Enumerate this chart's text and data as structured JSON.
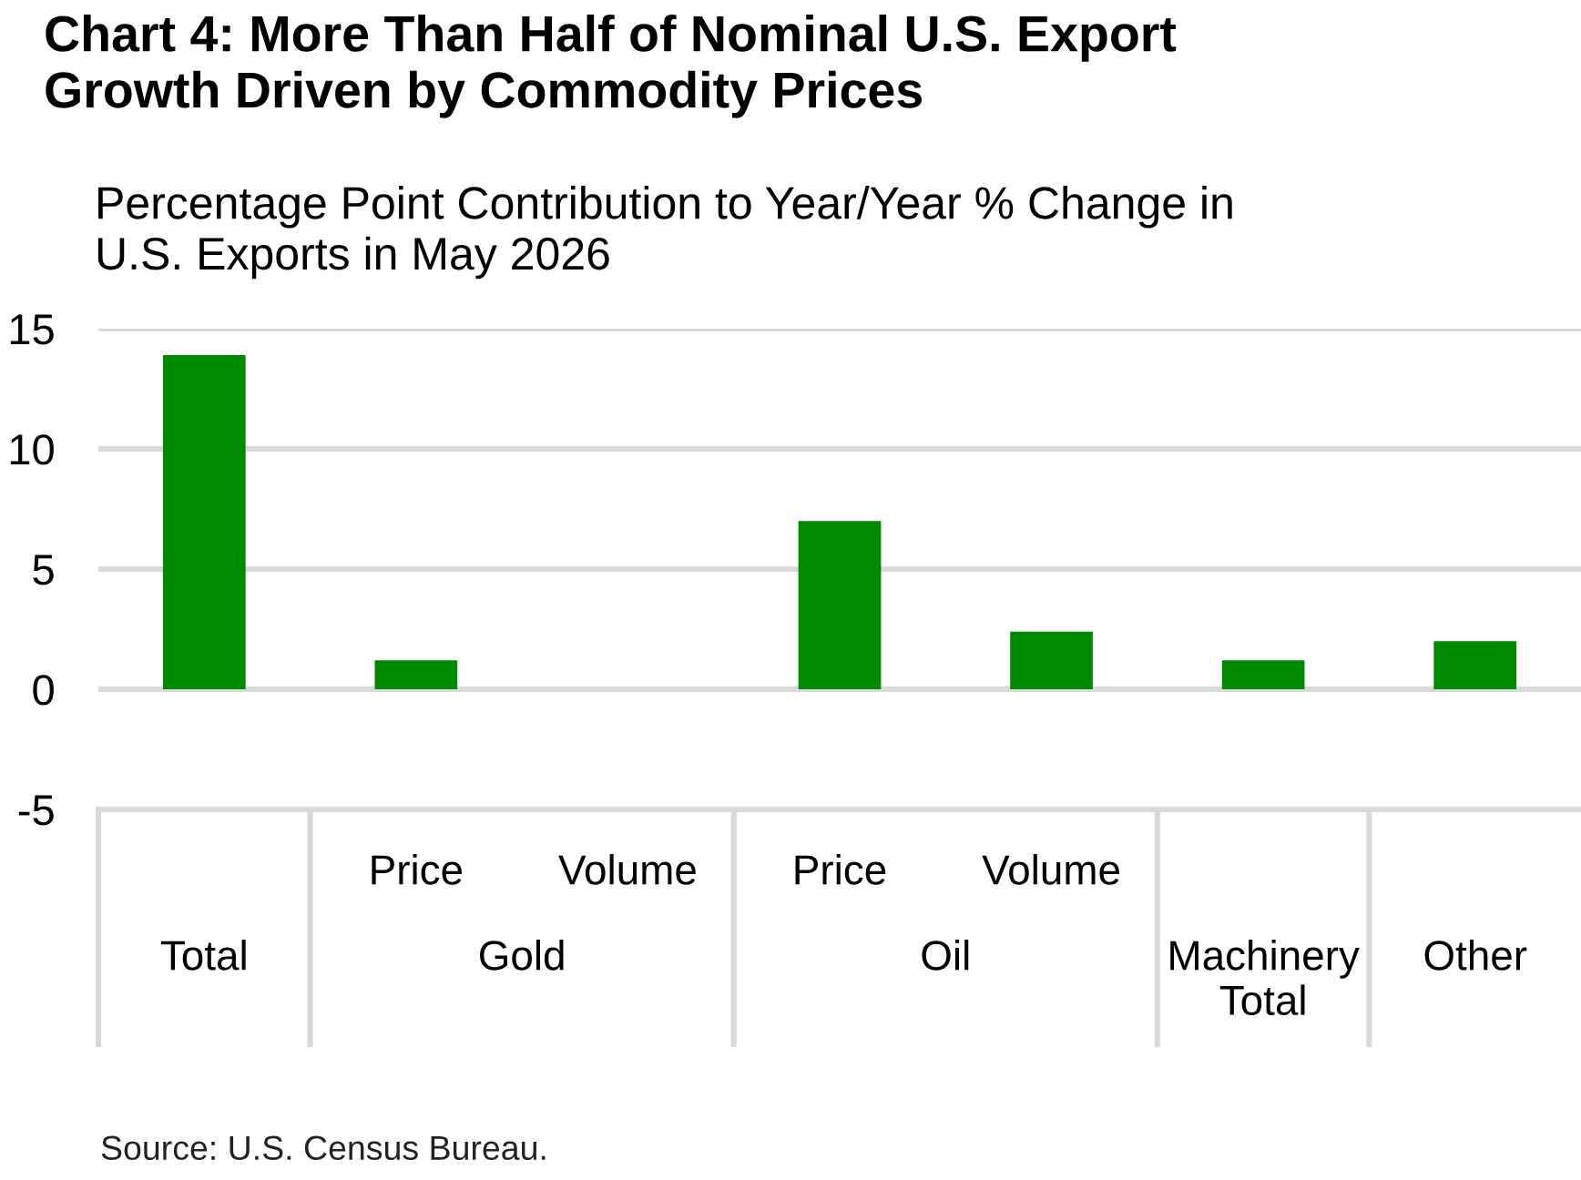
{
  "chart_data": {
    "type": "bar",
    "title": "Chart 4: More Than Half of Nominal U.S. Export\nGrowth Driven by Commodity Prices",
    "ylabel": "Percentage Point Contribution to Year/Year % Change in\nU.S. Exports in May 2026",
    "categories": [
      "Total",
      "Price",
      "Volume",
      "Price",
      "Volume",
      "Machinery\nTotal",
      "Other"
    ],
    "values": [
      13.9,
      1.2,
      0,
      7.0,
      2.4,
      1.2,
      2.0
    ],
    "color": "#008a00",
    "ylim": [
      -5,
      15
    ],
    "yticks": [
      -5,
      0,
      5,
      10,
      15
    ],
    "grid": "y",
    "annotations": [
      "Gold",
      "Oil",
      "Source: U.S. Census Bureau."
    ]
  }
}
